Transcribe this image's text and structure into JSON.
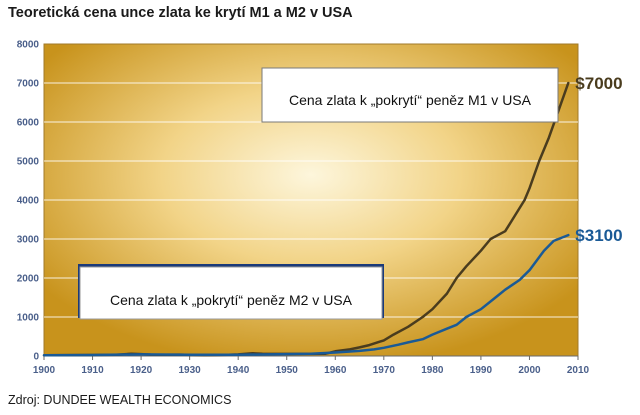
{
  "title": "Teoretická cena unce zlata ke krytí M1 a M2 v USA",
  "source": "Zdroj: DUNDEE WEALTH ECONOMICS",
  "chart_data": {
    "type": "line",
    "title": "Teoretická cena unce zlata ke krytí M1 a M2 v USA",
    "xlabel": "",
    "ylabel": "",
    "xlim": [
      1900,
      2010
    ],
    "ylim": [
      0,
      8000
    ],
    "x_ticks": [
      1900,
      1910,
      1920,
      1930,
      1940,
      1950,
      1960,
      1970,
      1980,
      1990,
      2000,
      2010
    ],
    "y_ticks": [
      0,
      1000,
      2000,
      3000,
      4000,
      5000,
      6000,
      7000,
      8000
    ],
    "grid": true,
    "series": [
      {
        "name": "Cena zlata k „pokrytí“ peněz M1 v USA",
        "color": "#4a3c1e",
        "end_label": "$7000",
        "x": [
          1900,
          1905,
          1910,
          1915,
          1918,
          1920,
          1922,
          1925,
          1928,
          1930,
          1933,
          1935,
          1938,
          1940,
          1943,
          1945,
          1948,
          1950,
          1955,
          1958,
          1960,
          1963,
          1965,
          1967,
          1970,
          1972,
          1975,
          1978,
          1980,
          1983,
          1985,
          1987,
          1990,
          1992,
          1995,
          1997,
          1999,
          2000,
          2002,
          2004,
          2006,
          2008
        ],
        "values": [
          20,
          22,
          25,
          30,
          60,
          50,
          35,
          30,
          35,
          28,
          20,
          22,
          30,
          40,
          70,
          60,
          55,
          55,
          55,
          60,
          120,
          170,
          220,
          280,
          400,
          550,
          750,
          1000,
          1200,
          1600,
          2000,
          2300,
          2700,
          3000,
          3200,
          3600,
          4000,
          4300,
          5000,
          5600,
          6300,
          7000
        ]
      },
      {
        "name": "Cena zlata k „pokrytí“ peněz M2 v USA",
        "color": "#1a5a96",
        "end_label": "$3100",
        "x": [
          1900,
          1910,
          1920,
          1930,
          1940,
          1950,
          1955,
          1960,
          1965,
          1968,
          1970,
          1973,
          1975,
          1978,
          1980,
          1983,
          1985,
          1987,
          1990,
          1993,
          1995,
          1998,
          2000,
          2003,
          2005,
          2008
        ],
        "values": [
          20,
          25,
          40,
          30,
          30,
          50,
          60,
          90,
          130,
          170,
          210,
          290,
          350,
          430,
          550,
          700,
          800,
          1000,
          1200,
          1500,
          1700,
          1950,
          2200,
          2700,
          2950,
          3100
        ]
      }
    ],
    "annotations": [
      {
        "text": "Cena zlata k „pokrytí“ peněz M1 v USA",
        "series": 0
      },
      {
        "text": "Cena zlata k „pokrytí“ peněz M2 v USA",
        "series": 1
      }
    ]
  }
}
